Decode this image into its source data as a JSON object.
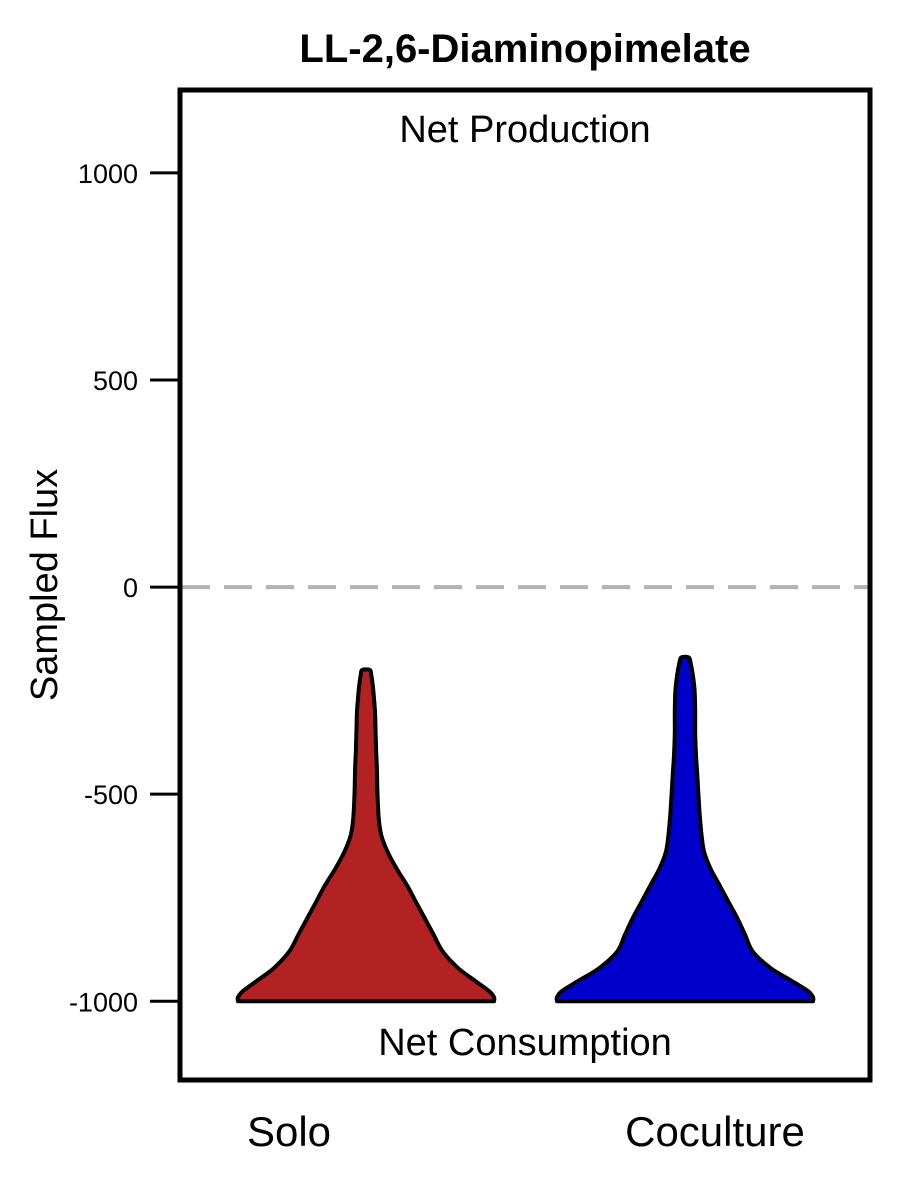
{
  "chart_data": {
    "type": "violin",
    "title": "LL-2,6-Diaminopimelate",
    "xlabel": "",
    "ylabel": "Sampled Flux",
    "ylim": [
      -1190,
      1200
    ],
    "yticks": [
      1000,
      500,
      0,
      -500,
      -1000
    ],
    "ytick_labels": [
      "1000",
      "500",
      "0",
      "-500",
      "-1000"
    ],
    "reference_line": {
      "y": 0,
      "style": "dashed",
      "color": "#b3b3b3"
    },
    "annotations": {
      "top": "Net Production",
      "bottom": "Net Consumption"
    },
    "grid": false,
    "categories": [
      "Solo",
      "Coculture"
    ],
    "series": [
      {
        "category": "Solo",
        "color": "#b22222",
        "min": -1000,
        "max": -200,
        "profile": [
          [
            -1000,
            1.0
          ],
          [
            -990,
            1.0
          ],
          [
            -975,
            0.96
          ],
          [
            -950,
            0.85
          ],
          [
            -920,
            0.72
          ],
          [
            -880,
            0.6
          ],
          [
            -840,
            0.53
          ],
          [
            -800,
            0.46
          ],
          [
            -760,
            0.39
          ],
          [
            -720,
            0.32
          ],
          [
            -680,
            0.24
          ],
          [
            -640,
            0.17
          ],
          [
            -600,
            0.12
          ],
          [
            -560,
            0.1
          ],
          [
            -500,
            0.09
          ],
          [
            -440,
            0.085
          ],
          [
            -400,
            0.08
          ],
          [
            -350,
            0.075
          ],
          [
            -300,
            0.07
          ],
          [
            -260,
            0.06
          ],
          [
            -230,
            0.05
          ],
          [
            -210,
            0.04
          ],
          [
            -200,
            0.03
          ]
        ]
      },
      {
        "category": "Coculture",
        "color": "#0000cd",
        "min": -1000,
        "max": -170,
        "profile": [
          [
            -1000,
            1.0
          ],
          [
            -990,
            1.0
          ],
          [
            -975,
            0.96
          ],
          [
            -950,
            0.83
          ],
          [
            -920,
            0.67
          ],
          [
            -880,
            0.53
          ],
          [
            -840,
            0.47
          ],
          [
            -800,
            0.41
          ],
          [
            -760,
            0.34
          ],
          [
            -720,
            0.27
          ],
          [
            -680,
            0.2
          ],
          [
            -640,
            0.15
          ],
          [
            -600,
            0.13
          ],
          [
            -550,
            0.115
          ],
          [
            -500,
            0.105
          ],
          [
            -450,
            0.095
          ],
          [
            -400,
            0.085
          ],
          [
            -350,
            0.08
          ],
          [
            -300,
            0.08
          ],
          [
            -250,
            0.075
          ],
          [
            -210,
            0.06
          ],
          [
            -185,
            0.045
          ],
          [
            -170,
            0.03
          ]
        ]
      }
    ]
  }
}
